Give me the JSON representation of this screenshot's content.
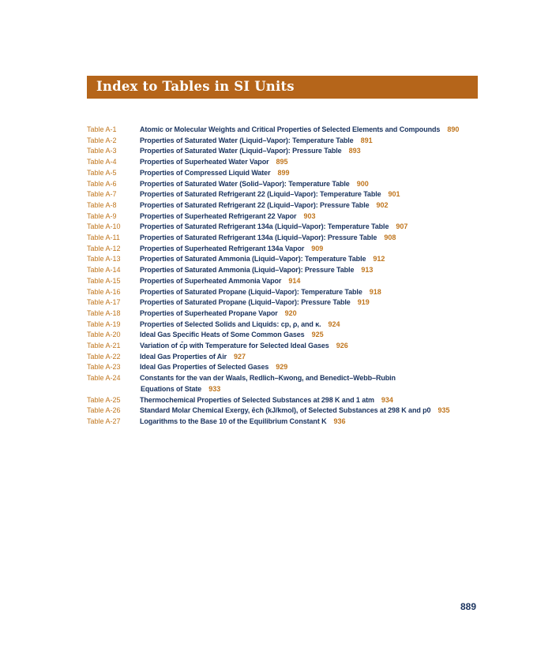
{
  "header": {
    "title": "Index to Tables in SI Units",
    "color": "#b5651a"
  },
  "entries": [
    {
      "label": "Table A-1",
      "title": "Atomic or Molecular Weights and Critical Properties of Selected Elements and Compounds",
      "page": "890"
    },
    {
      "label": "Table A-2",
      "title": "Properties of Saturated Water (Liquid–Vapor): Temperature Table",
      "page": "891"
    },
    {
      "label": "Table A-3",
      "title": "Properties of Saturated Water (Liquid–Vapor): Pressure Table",
      "page": "893"
    },
    {
      "label": "Table A-4",
      "title": "Properties of Superheated Water Vapor",
      "page": "895"
    },
    {
      "label": "Table A-5",
      "title": "Properties of Compressed Liquid Water",
      "page": "899"
    },
    {
      "label": "Table A-6",
      "title": "Properties of Saturated Water (Solid–Vapor): Temperature Table",
      "page": "900"
    },
    {
      "label": "Table A-7",
      "title": "Properties of Saturated Refrigerant 22 (Liquid–Vapor): Temperature Table",
      "page": "901"
    },
    {
      "label": "Table A-8",
      "title": "Properties of Saturated Refrigerant 22 (Liquid–Vapor): Pressure Table",
      "page": "902"
    },
    {
      "label": "Table A-9",
      "title": "Properties of Superheated Refrigerant 22 Vapor",
      "page": "903"
    },
    {
      "label": "Table A-10",
      "title": "Properties of Saturated Refrigerant 134a (Liquid–Vapor): Temperature Table",
      "page": "907"
    },
    {
      "label": "Table A-11",
      "title": "Properties of Saturated Refrigerant 134a (Liquid–Vapor): Pressure Table",
      "page": "908"
    },
    {
      "label": "Table A-12",
      "title": "Properties of Superheated Refrigerant 134a Vapor",
      "page": "909"
    },
    {
      "label": "Table A-13",
      "title": "Properties of Saturated Ammonia (Liquid–Vapor): Temperature Table",
      "page": "912"
    },
    {
      "label": "Table A-14",
      "title": "Properties of Saturated Ammonia (Liquid–Vapor): Pressure Table",
      "page": "913"
    },
    {
      "label": "Table A-15",
      "title": "Properties of Superheated Ammonia Vapor",
      "page": "914"
    },
    {
      "label": "Table A-16",
      "title": "Properties of Saturated Propane (Liquid–Vapor): Temperature Table",
      "page": "918"
    },
    {
      "label": "Table A-17",
      "title": "Properties of Saturated Propane (Liquid–Vapor): Pressure Table",
      "page": "919"
    },
    {
      "label": "Table A-18",
      "title": "Properties of Superheated Propane Vapor",
      "page": "920"
    },
    {
      "label": "Table A-19",
      "title": "Properties of Selected Solids and Liquids: cp, ρ, and κ.",
      "page": "924"
    },
    {
      "label": "Table A-20",
      "title": "Ideal Gas Specific Heats of Some Common Gases",
      "page": "925"
    },
    {
      "label": "Table A-21",
      "title": "Variation of c̄p with Temperature for Selected Ideal Gases",
      "page": "926"
    },
    {
      "label": "Table A-22",
      "title": "Ideal Gas Properties of Air",
      "page": "927"
    },
    {
      "label": "Table A-23",
      "title": "Ideal Gas Properties of Selected Gases",
      "page": "929"
    },
    {
      "label": "Table A-24",
      "title": "Constants for the van der Waals, Redlich–Kwong, and Benedict–Webb–Rubin",
      "title_line2": "Equations of State",
      "page": "933"
    },
    {
      "label": "Table A-25",
      "title": "Thermochemical Properties of Selected Substances at 298 K and 1 atm",
      "page": "934"
    },
    {
      "label": "Table A-26",
      "title": "Standard Molar Chemical Exergy, ēch (kJ/kmol), of Selected Substances at 298 K and p0",
      "page": "935"
    },
    {
      "label": "Table A-27",
      "title": "Logarithms to the Base 10 of the Equilibrium Constant K",
      "page": "936"
    }
  ],
  "footer": {
    "page_number": "889"
  }
}
